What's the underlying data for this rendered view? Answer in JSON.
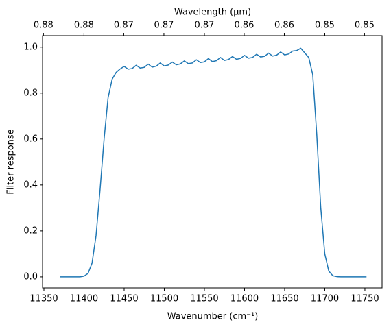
{
  "chart_data": {
    "type": "line",
    "xlabel": "Wavenumber (cm⁻¹)",
    "ylabel": "Filter response",
    "x2label": "Wavelength (μm)",
    "color": "#1f77b4",
    "x": [
      11370,
      11395,
      11400,
      11405,
      11410,
      11415,
      11420,
      11425,
      11430,
      11435,
      11440,
      11445,
      11450,
      11455,
      11460,
      11465,
      11470,
      11475,
      11480,
      11485,
      11490,
      11495,
      11500,
      11505,
      11510,
      11515,
      11520,
      11525,
      11530,
      11535,
      11540,
      11545,
      11550,
      11555,
      11560,
      11565,
      11570,
      11575,
      11580,
      11585,
      11590,
      11595,
      11600,
      11605,
      11610,
      11615,
      11620,
      11625,
      11630,
      11635,
      11640,
      11645,
      11650,
      11655,
      11660,
      11665,
      11670,
      11675,
      11680,
      11685,
      11690,
      11695,
      11700,
      11705,
      11710,
      11715,
      11720,
      11752
    ],
    "values": [
      0,
      0,
      0.003,
      0.015,
      0.06,
      0.18,
      0.38,
      0.6,
      0.78,
      0.86,
      0.89,
      0.905,
      0.916,
      0.904,
      0.907,
      0.921,
      0.909,
      0.912,
      0.926,
      0.913,
      0.917,
      0.931,
      0.918,
      0.922,
      0.935,
      0.923,
      0.927,
      0.94,
      0.928,
      0.931,
      0.945,
      0.933,
      0.936,
      0.95,
      0.937,
      0.941,
      0.955,
      0.942,
      0.946,
      0.959,
      0.947,
      0.951,
      0.964,
      0.952,
      0.955,
      0.969,
      0.957,
      0.96,
      0.974,
      0.961,
      0.965,
      0.979,
      0.966,
      0.97,
      0.983,
      0.985,
      0.995,
      0.975,
      0.955,
      0.88,
      0.62,
      0.3,
      0.1,
      0.025,
      0.005,
      0.001,
      0,
      0
    ],
    "xlim": [
      11348.3,
      11771.4
    ],
    "xticks": [
      11350,
      11400,
      11450,
      11500,
      11550,
      11600,
      11650,
      11700,
      11750
    ],
    "ylim": [
      -0.048,
      1.05
    ],
    "yticks": [
      {
        "value": 0,
        "label": "0.0"
      },
      0.2,
      0.4,
      0.6,
      0.8,
      {
        "value": 1,
        "label": "1.0"
      }
    ],
    "x2ticks": [
      {
        "value": 0.8811,
        "label": "0.88"
      },
      {
        "value": 0.8772,
        "label": "0.88"
      },
      {
        "value": 0.8734,
        "label": "0.87"
      },
      {
        "value": 0.8696,
        "label": "0.87"
      },
      {
        "value": 0.8658,
        "label": "0.87"
      },
      {
        "value": 0.8621,
        "label": "0.86"
      },
      {
        "value": 0.8584,
        "label": "0.86"
      },
      {
        "value": 0.8547,
        "label": "0.85"
      },
      {
        "value": 0.8511,
        "label": "0.85"
      }
    ]
  }
}
